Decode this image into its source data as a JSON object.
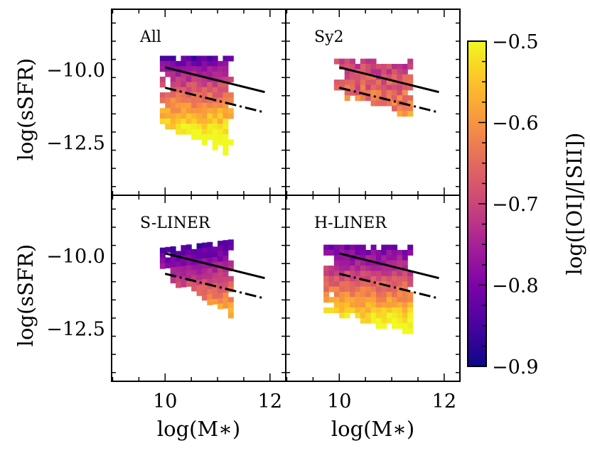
{
  "chart_data": {
    "type": "heatmap",
    "x_label": "log(M∗)",
    "y_label": "log(sSFR)",
    "xlim": [
      8.98,
      12.3
    ],
    "ylim": [
      -14.3,
      -7.9
    ],
    "x_ticks": [
      10,
      12
    ],
    "y_ticks": [
      -10.0,
      -12.5
    ],
    "colorbar": {
      "label": "log([OI]/[SII])",
      "range": [
        -0.9,
        -0.5
      ],
      "ticks": [
        -0.5,
        -0.6,
        -0.7,
        -0.8,
        -0.9
      ],
      "colormap": "plasma"
    },
    "panels": [
      {
        "name": "All",
        "region_xrange": [
          9.9,
          11.3
        ],
        "region_ytop": [
          -9.5,
          -9.5
        ],
        "region_ybottom": [
          -11.8,
          -12.9
        ],
        "color_trend": "purple at high sSFR to yellow at low sSFR"
      },
      {
        "name": "Sy2",
        "region_xrange": [
          9.9,
          11.4
        ],
        "region_ytop": [
          -9.6,
          -9.6
        ],
        "region_ybottom": [
          -10.8,
          -11.6
        ],
        "color_trend": "pink to orange"
      },
      {
        "name": "S-LINER",
        "region_xrange": [
          9.9,
          11.3
        ],
        "region_ytop": [
          -9.7,
          -9.4
        ],
        "region_ybottom": [
          -10.6,
          -12.1
        ],
        "color_trend": "dark blue to orange"
      },
      {
        "name": "H-LINER",
        "region_xrange": [
          9.7,
          11.4
        ],
        "region_ytop": [
          -9.6,
          -9.6
        ],
        "region_ybottom": [
          -11.8,
          -12.7
        ],
        "color_trend": "purple at high sSFR to yellow at low sSFR"
      }
    ],
    "reference_lines": [
      {
        "style": "solid",
        "x": [
          10,
          11.9
        ],
        "y": [
          -9.9,
          -10.75
        ]
      },
      {
        "style": "dash-dot",
        "x": [
          10,
          11.9
        ],
        "y": [
          -10.6,
          -11.45
        ]
      }
    ]
  }
}
